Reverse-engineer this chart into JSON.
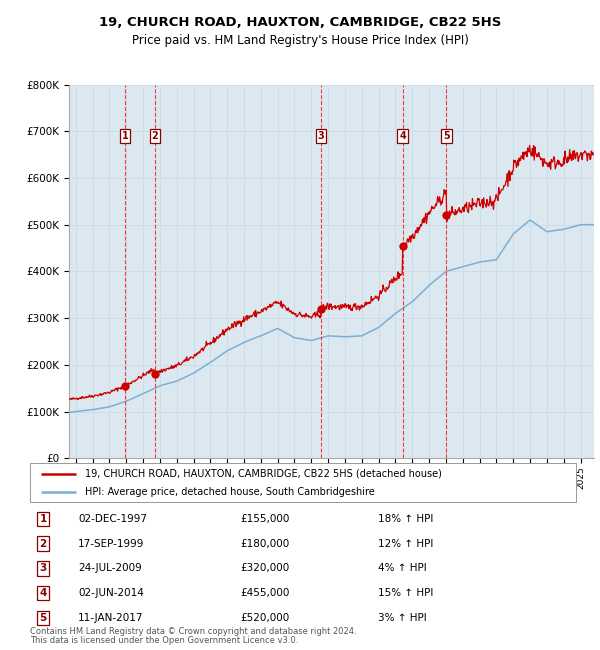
{
  "title1": "19, CHURCH ROAD, HAUXTON, CAMBRIDGE, CB22 5HS",
  "title2": "Price paid vs. HM Land Registry's House Price Index (HPI)",
  "ylim": [
    0,
    800000
  ],
  "yticks": [
    0,
    100000,
    200000,
    300000,
    400000,
    500000,
    600000,
    700000,
    800000
  ],
  "ytick_labels": [
    "£0",
    "£100K",
    "£200K",
    "£300K",
    "£400K",
    "£500K",
    "£600K",
    "£700K",
    "£800K"
  ],
  "xlim_start": 1994.6,
  "xlim_end": 2025.8,
  "sales": [
    {
      "num": 1,
      "year": 1997.92,
      "price": 155000,
      "date": "02-DEC-1997",
      "pct": "18%"
    },
    {
      "num": 2,
      "year": 1999.71,
      "price": 180000,
      "date": "17-SEP-1999",
      "pct": "12%"
    },
    {
      "num": 3,
      "year": 2009.56,
      "price": 320000,
      "date": "24-JUL-2009",
      "pct": "4%"
    },
    {
      "num": 4,
      "year": 2014.42,
      "price": 455000,
      "date": "02-JUN-2014",
      "pct": "15%"
    },
    {
      "num": 5,
      "year": 2017.03,
      "price": 520000,
      "date": "11-JAN-2017",
      "pct": "3%"
    }
  ],
  "legend_line1": "19, CHURCH ROAD, HAUXTON, CAMBRIDGE, CB22 5HS (detached house)",
  "legend_line2": "HPI: Average price, detached house, South Cambridgeshire",
  "footer1": "Contains HM Land Registry data © Crown copyright and database right 2024.",
  "footer2": "This data is licensed under the Open Government Licence v3.0.",
  "red_color": "#cc0000",
  "blue_color": "#7bafd4",
  "grid_color": "#c8d8e8",
  "plot_bg": "#dce8f0"
}
